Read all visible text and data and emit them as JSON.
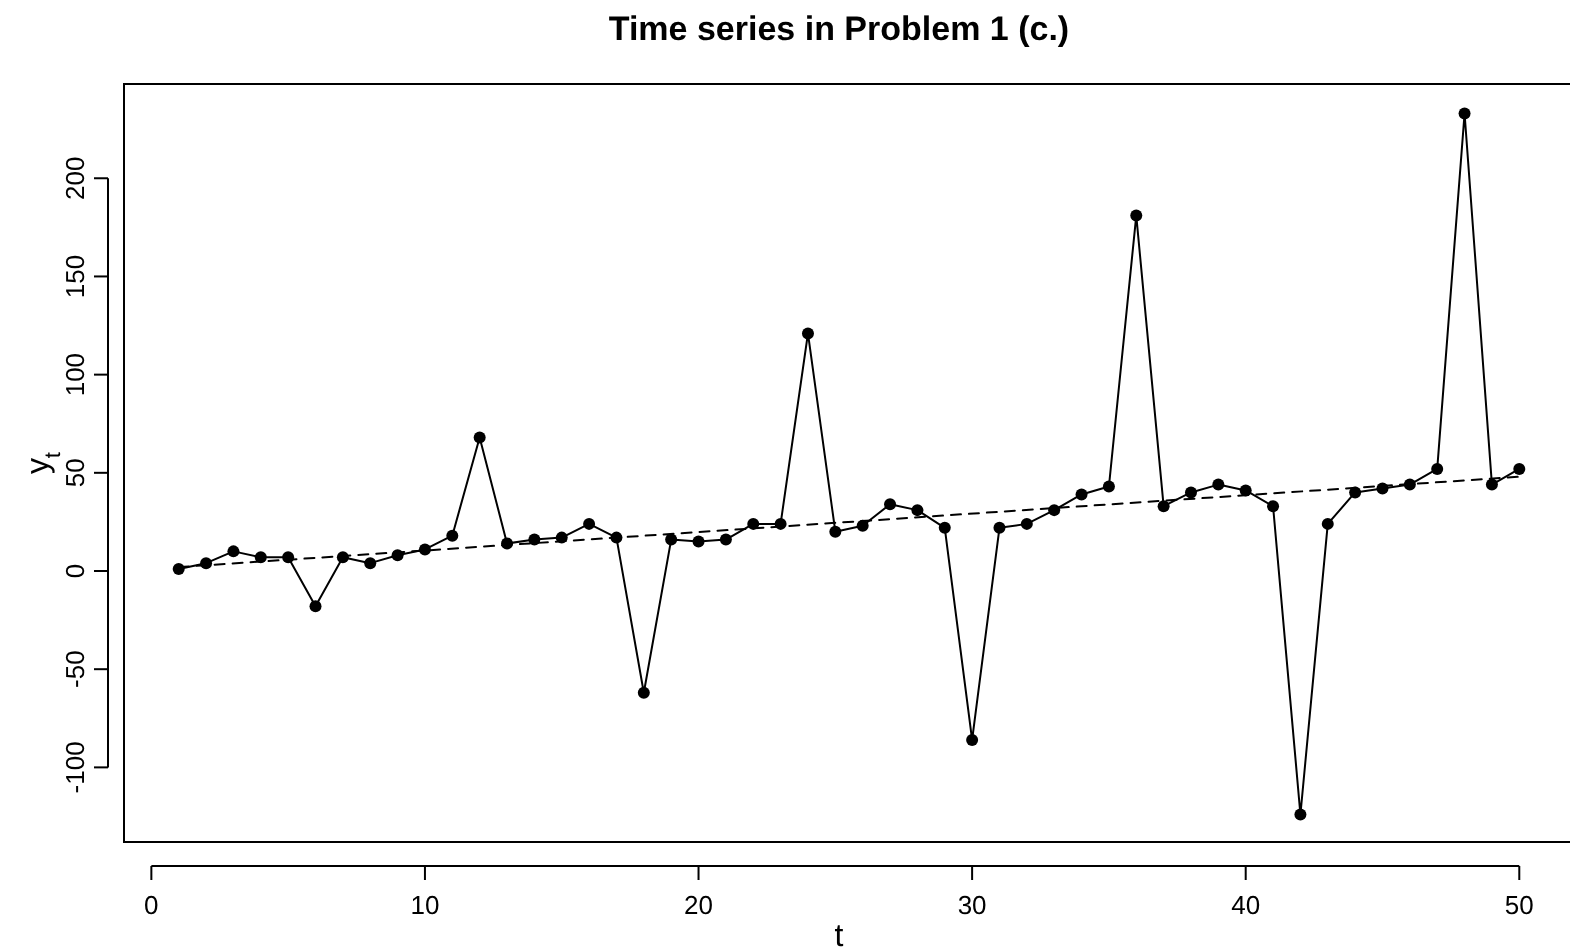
{
  "chart_data": {
    "type": "line",
    "title": "Time series in Problem 1 (c.)",
    "xlabel": "t",
    "ylabel": "y$_{t}$",
    "xlim": [
      -1,
      52
    ],
    "ylim": [
      -138,
      248
    ],
    "xticks": [
      0,
      10,
      20,
      30,
      40,
      50
    ],
    "yticks": [
      -100,
      -50,
      0,
      50,
      100,
      150,
      200
    ],
    "grid": false,
    "series": [
      {
        "color": "#000000",
        "marker": "circle",
        "line_style": "solid",
        "x": [
          1,
          2,
          3,
          4,
          5,
          6,
          7,
          8,
          9,
          10,
          11,
          12,
          13,
          14,
          15,
          16,
          17,
          18,
          19,
          20,
          21,
          22,
          23,
          24,
          25,
          26,
          27,
          28,
          29,
          30,
          31,
          32,
          33,
          34,
          35,
          36,
          37,
          38,
          39,
          40,
          41,
          42,
          43,
          44,
          45,
          46,
          47,
          48,
          49,
          50
        ],
        "values": [
          1,
          4,
          10,
          7,
          7,
          -18,
          7,
          4,
          8,
          11,
          18,
          68,
          14,
          16,
          17,
          24,
          17,
          -62,
          16,
          15,
          16,
          24,
          24,
          121,
          20,
          23,
          34,
          31,
          22,
          -86,
          22,
          24,
          31,
          39,
          43,
          181,
          33,
          40,
          44,
          41,
          33,
          -124,
          24,
          40,
          42,
          44,
          52,
          233,
          44,
          52
        ]
      },
      {
        "color": "#000000",
        "marker": "none",
        "line_style": "dashed",
        "x": [
          1,
          50
        ],
        "values": [
          2,
          48
        ]
      }
    ]
  }
}
